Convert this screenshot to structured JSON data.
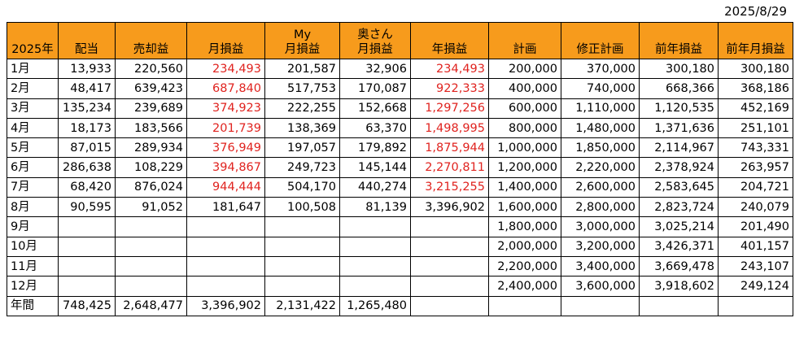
{
  "date": "2025/8/29",
  "headers": [
    {
      "line1": "",
      "line2": "2025年"
    },
    {
      "line1": "",
      "line2": "配当"
    },
    {
      "line1": "",
      "line2": "売却益"
    },
    {
      "line1": "",
      "line2": "月損益"
    },
    {
      "line1": "My",
      "line2": "月損益"
    },
    {
      "line1": "奥さん",
      "line2": "月損益"
    },
    {
      "line1": "",
      "line2": "年損益"
    },
    {
      "line1": "",
      "line2": "計画"
    },
    {
      "line1": "",
      "line2": "修正計画"
    },
    {
      "line1": "",
      "line2": "前年損益"
    },
    {
      "line1": "",
      "line2": "前年月損益"
    }
  ],
  "rows": [
    {
      "label": "1月",
      "cells": [
        "13,933",
        "220,560",
        "234,493",
        "201,587",
        "32,906",
        "234,493",
        "200,000",
        "370,000",
        "300,180",
        "300,180"
      ]
    },
    {
      "label": "2月",
      "cells": [
        "48,417",
        "639,423",
        "687,840",
        "517,753",
        "170,087",
        "922,333",
        "400,000",
        "740,000",
        "668,366",
        "368,186"
      ]
    },
    {
      "label": "3月",
      "cells": [
        "135,234",
        "239,689",
        "374,923",
        "222,255",
        "152,668",
        "1,297,256",
        "600,000",
        "1,110,000",
        "1,120,535",
        "452,169"
      ]
    },
    {
      "label": "4月",
      "cells": [
        "18,173",
        "183,566",
        "201,739",
        "138,369",
        "63,370",
        "1,498,995",
        "800,000",
        "1,480,000",
        "1,371,636",
        "251,101"
      ]
    },
    {
      "label": "5月",
      "cells": [
        "87,015",
        "289,934",
        "376,949",
        "197,057",
        "179,892",
        "1,875,944",
        "1,000,000",
        "1,850,000",
        "2,114,967",
        "743,331"
      ]
    },
    {
      "label": "6月",
      "cells": [
        "286,638",
        "108,229",
        "394,867",
        "249,723",
        "145,144",
        "2,270,811",
        "1,200,000",
        "2,220,000",
        "2,378,924",
        "263,957"
      ]
    },
    {
      "label": "7月",
      "cells": [
        "68,420",
        "876,024",
        "944,444",
        "504,170",
        "440,274",
        "3,215,255",
        "1,400,000",
        "2,600,000",
        "2,583,645",
        "204,721"
      ]
    },
    {
      "label": "8月",
      "cells": [
        "90,595",
        "91,052",
        "181,647",
        "100,508",
        "81,139",
        "3,396,902",
        "1,600,000",
        "2,800,000",
        "2,823,724",
        "240,079"
      ]
    },
    {
      "label": "9月",
      "cells": [
        "",
        "",
        "",
        "",
        "",
        "",
        "1,800,000",
        "3,000,000",
        "3,025,214",
        "201,490"
      ]
    },
    {
      "label": "10月",
      "cells": [
        "",
        "",
        "",
        "",
        "",
        "",
        "2,000,000",
        "3,200,000",
        "3,426,371",
        "401,157"
      ]
    },
    {
      "label": "11月",
      "cells": [
        "",
        "",
        "",
        "",
        "",
        "",
        "2,200,000",
        "3,400,000",
        "3,669,478",
        "243,107"
      ]
    },
    {
      "label": "12月",
      "cells": [
        "",
        "",
        "",
        "",
        "",
        "",
        "2,400,000",
        "3,600,000",
        "3,918,602",
        "249,124"
      ]
    },
    {
      "label": "年間",
      "cells": [
        "748,425",
        "2,648,477",
        "3,396,902",
        "2,131,422",
        "1,265,480",
        "",
        "",
        "",
        "",
        ""
      ]
    }
  ],
  "colors": {
    "header_bg": "#f79b1c",
    "red_text": "#e0231f"
  },
  "red_rule": "月損益 and 年損益 values for 1月–7月 are shown in red"
}
